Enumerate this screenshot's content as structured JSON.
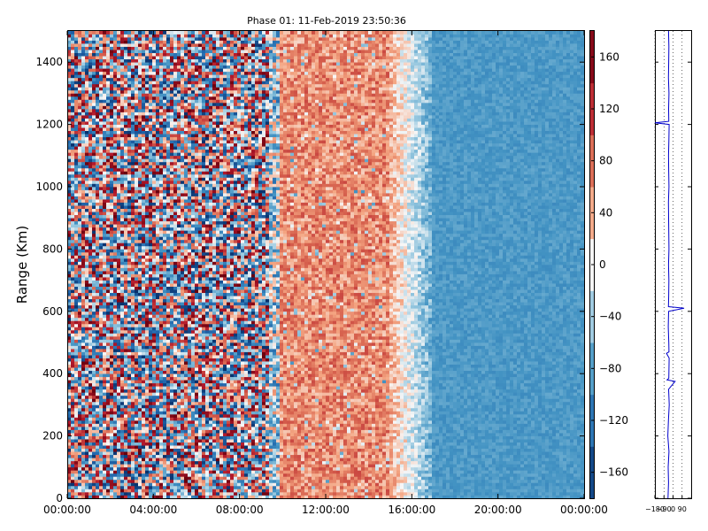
{
  "chart_data": [
    {
      "type": "heatmap",
      "title": "Phase 01: 11-Feb-2019 23:50:36",
      "xlabel": "",
      "ylabel": "Range (Km)",
      "x_ticks": [
        "00:00:00",
        "04:00:00",
        "08:00:00",
        "12:00:00",
        "16:00:00",
        "20:00:00",
        "00:00:00"
      ],
      "xlim_hours": [
        0,
        24
      ],
      "y_ticks": [
        0,
        200,
        400,
        600,
        800,
        1000,
        1200,
        1400
      ],
      "ylim": [
        0,
        1500
      ],
      "grid": false,
      "colorbar": {
        "ticks": [
          -160,
          -120,
          -80,
          -40,
          0,
          40,
          80,
          120,
          160
        ],
        "range": [
          -180,
          180
        ],
        "colormap": "RdBu_r",
        "colors": {
          "low": "#08306b",
          "mid": "#f7f7f7",
          "high": "#67000d"
        }
      },
      "value_regions": [
        {
          "time_start": "00:00:00",
          "time_end": "09:30:00",
          "phase": "random, full range -180 to 180"
        },
        {
          "time_start": "10:00:00",
          "time_end": "15:00:00",
          "phase": "mostly 20 to 100"
        },
        {
          "time_start": "15:00:00",
          "time_end": "17:00:00",
          "phase": "transition -60 to 20"
        },
        {
          "time_start": "17:00:00",
          "time_end": "00:00:00",
          "phase": "mostly -100 to -70"
        }
      ]
    },
    {
      "type": "line",
      "x_ticks": [
        -180,
        -90,
        0,
        90
      ],
      "xlim": [
        -180,
        180
      ],
      "ylim": [
        0,
        1500
      ],
      "grid": true,
      "series": [
        {
          "color": "#0000cc",
          "y": [
            0,
            50,
            100,
            150,
            200,
            250,
            300,
            350,
            375,
            380,
            385,
            400,
            450,
            465,
            470,
            500,
            550,
            600,
            610,
            615,
            650,
            700,
            750,
            800,
            850,
            900,
            950,
            1000,
            1050,
            1100,
            1150,
            1200,
            1205,
            1210,
            1250,
            1300,
            1350,
            1400,
            1450,
            1500
          ],
          "x": [
            -50,
            -45,
            -48,
            -40,
            -52,
            -46,
            -38,
            -44,
            20,
            -60,
            -42,
            -41,
            -39,
            -65,
            -40,
            -42,
            -47,
            -44,
            110,
            -46,
            -43,
            -41,
            -45,
            -40,
            -42,
            -44,
            -46,
            -40,
            -43,
            -45,
            -41,
            -39,
            -180,
            -42,
            -44,
            -40,
            -46,
            -43,
            -41,
            -45
          ]
        }
      ]
    }
  ]
}
